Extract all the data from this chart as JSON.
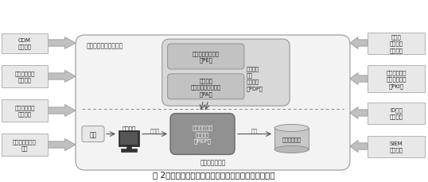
{
  "title": "図 2：ゼロトラストの中核となる論理コンポーネント",
  "left_boxes": [
    "CDM\nシステム",
    "業界コンプラ\nイアンス",
    "脅威インテリ\nジェンス",
    "アクティビティ\nログ"
  ],
  "right_boxes": [
    "データ\nアクセス\nポリシー",
    "公開インフラ\nストラクチャ\n（PKI）",
    "ID管理\nシステム",
    "SIEM\nシステム"
  ],
  "control_plane_label": "コントロールプレーン",
  "data_plane_label": "データプレーン",
  "subject_label": "主体",
  "system_label": "システム",
  "untrusted_label": "未信頼",
  "trusted_label": "信頼",
  "enterprise_label": "企業リソース",
  "pe_label": "ポリシーエンジン\n（PE）",
  "pa_label": "ポリシー\nアドミニストレータ\n（PA）",
  "pdp_label": "ポリシー\n決定\nポイント\n（PDP）",
  "pep_label": "ポリシー実施\nポイント\n（PEP）",
  "outer_fc": "#f3f3f3",
  "outer_ec": "#aaaaaa",
  "ctrl_inner_fc": "#d8d8d8",
  "ctrl_inner_ec": "#999999",
  "pe_fc": "#c2c2c2",
  "pe_ec": "#888888",
  "pep_fc": "#919191",
  "pep_ec": "#666666",
  "left_box_fc": "#e8e8e8",
  "left_box_ec": "#aaaaaa",
  "right_box_fc": "#e8e8e8",
  "right_box_ec": "#aaaaaa",
  "subj_fc": "#e8e8e8",
  "subj_ec": "#999999",
  "ent_fc": "#c8c8c8",
  "ent_ec": "#888888",
  "arrow_fc": "#c0c0c0",
  "arrow_ec": "#999999"
}
